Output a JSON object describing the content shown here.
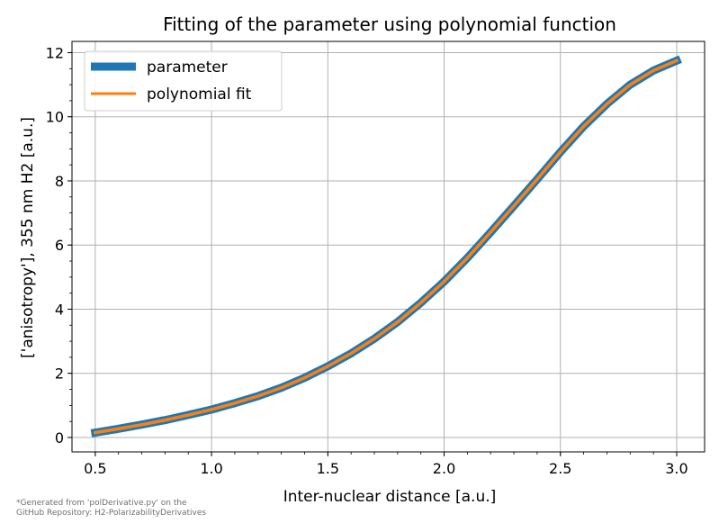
{
  "chart_data": {
    "type": "line",
    "title": "Fitting of the parameter using polynomial function",
    "xlabel": "Inter-nuclear distance [a.u.]",
    "ylabel": "['anisotropy'], 355 nm H2  [a.u.]",
    "xlim": [
      0.4,
      3.12
    ],
    "ylim": [
      -0.45,
      12.35
    ],
    "x_ticks": [
      0.5,
      1.0,
      1.5,
      2.0,
      2.5,
      3.0
    ],
    "x_tick_labels": [
      "0.5",
      "1.0",
      "1.5",
      "2.0",
      "2.5",
      "3.0"
    ],
    "y_ticks": [
      0,
      2,
      4,
      6,
      8,
      10,
      12
    ],
    "y_tick_labels": [
      "0",
      "2",
      "4",
      "6",
      "8",
      "10",
      "12"
    ],
    "grid": true,
    "legend_position": "top-left",
    "x": [
      0.5,
      0.6,
      0.7,
      0.8,
      0.9,
      1.0,
      1.1,
      1.2,
      1.3,
      1.4,
      1.5,
      1.6,
      1.7,
      1.8,
      1.9,
      2.0,
      2.1,
      2.2,
      2.3,
      2.4,
      2.5,
      2.6,
      2.7,
      2.8,
      2.9,
      3.0
    ],
    "series": [
      {
        "name": "parameter",
        "color": "#1f77b4",
        "values": [
          0.15,
          0.27,
          0.4,
          0.54,
          0.7,
          0.87,
          1.07,
          1.29,
          1.55,
          1.86,
          2.22,
          2.62,
          3.08,
          3.6,
          4.2,
          4.86,
          5.6,
          6.4,
          7.22,
          8.05,
          8.9,
          9.7,
          10.4,
          11.0,
          11.44,
          11.75
        ]
      },
      {
        "name": "polynomial fit",
        "color": "#ff7f0e",
        "values": [
          0.15,
          0.27,
          0.4,
          0.54,
          0.7,
          0.87,
          1.07,
          1.29,
          1.55,
          1.86,
          2.22,
          2.62,
          3.08,
          3.6,
          4.2,
          4.86,
          5.6,
          6.4,
          7.22,
          8.05,
          8.9,
          9.7,
          10.4,
          11.0,
          11.44,
          11.75
        ]
      }
    ]
  },
  "footnote": "*Generated from 'polDerivative.py' on the\nGitHub Repository: H2-PolarizabilityDerivatives"
}
